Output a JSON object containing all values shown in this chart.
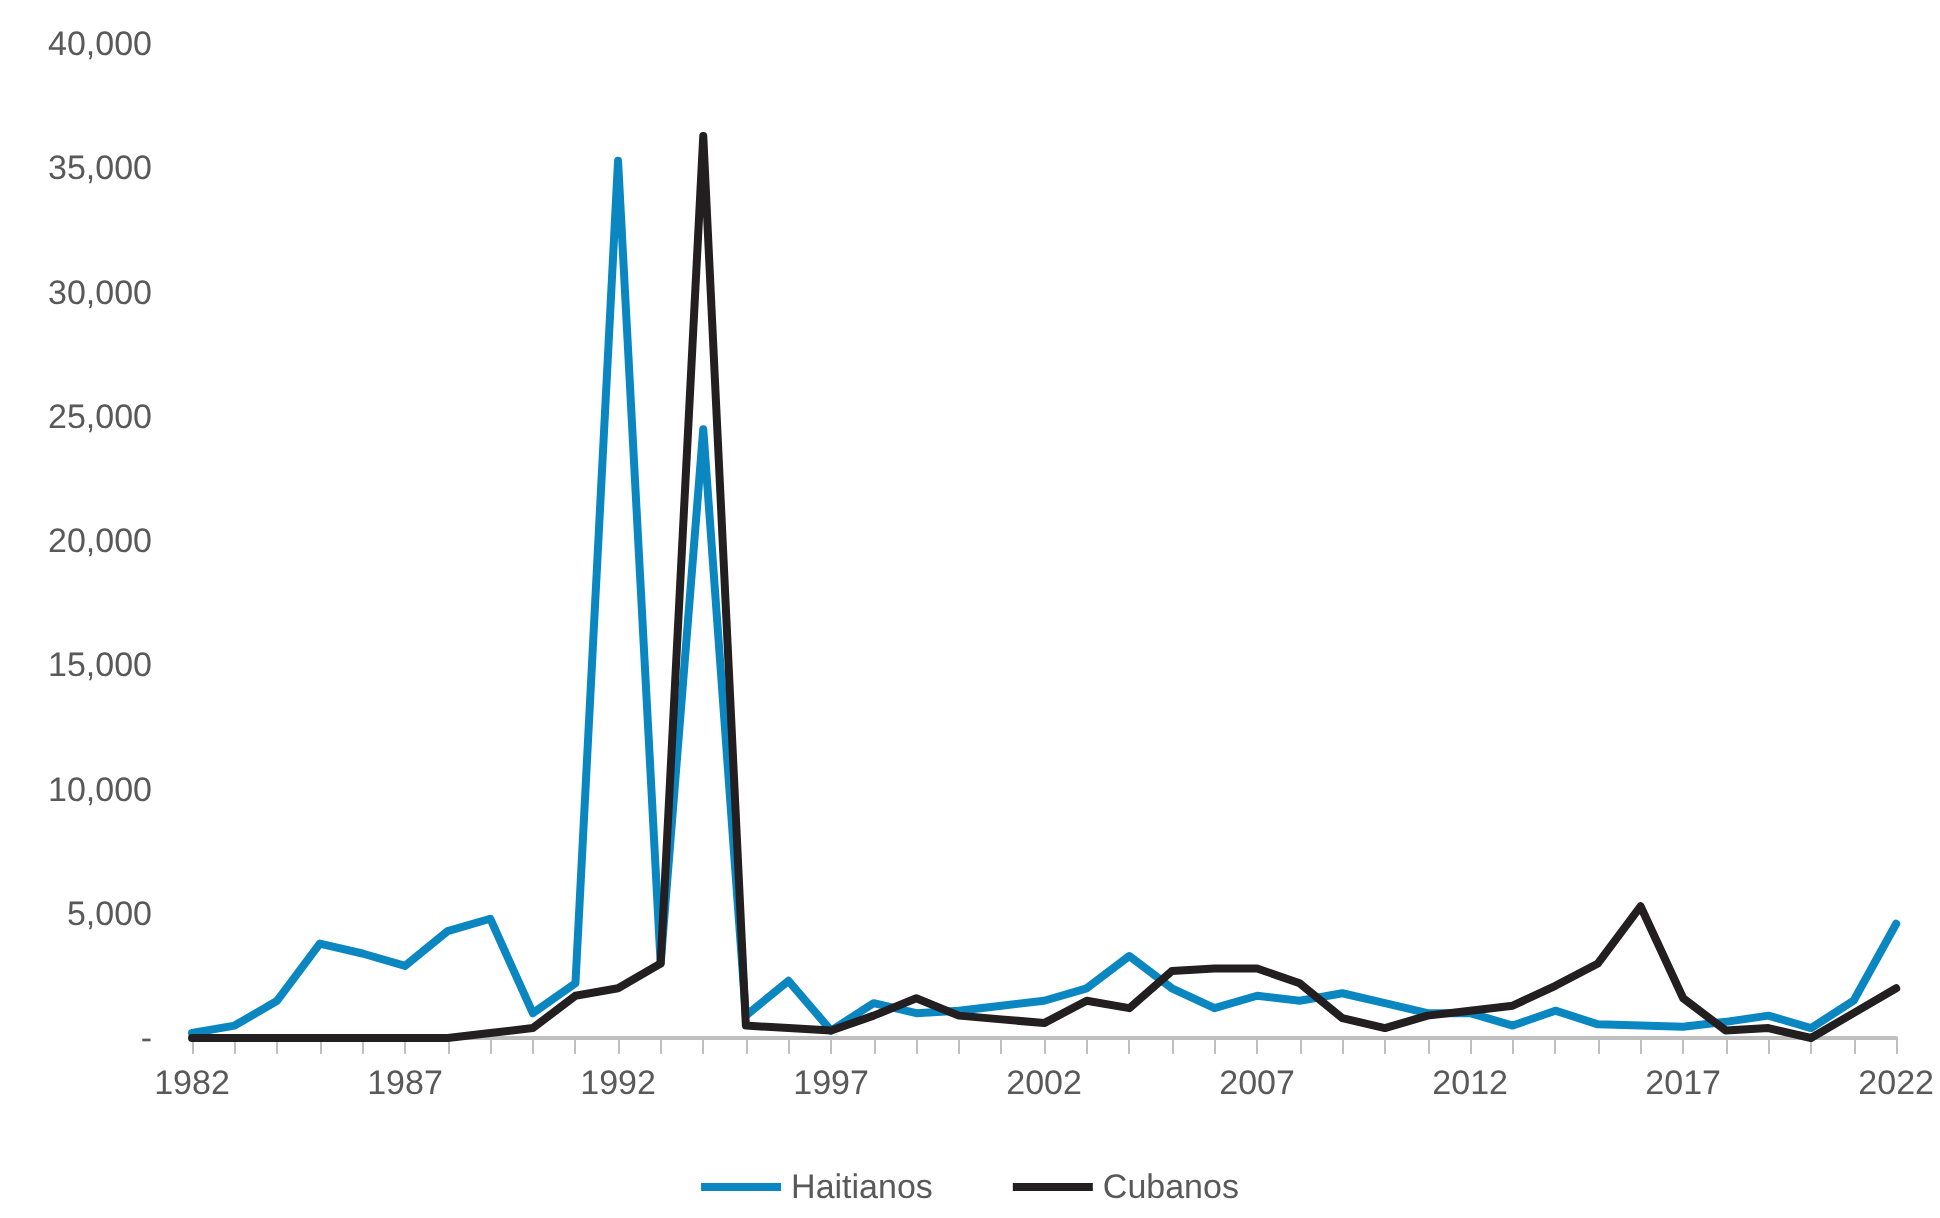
{
  "chart_data": {
    "type": "line",
    "categories": [
      "1982",
      null,
      null,
      null,
      null,
      "1987",
      null,
      null,
      null,
      null,
      "1992",
      null,
      null,
      null,
      null,
      "1997",
      null,
      null,
      null,
      null,
      "2002",
      null,
      null,
      null,
      null,
      "2007",
      null,
      null,
      null,
      null,
      "2012",
      null,
      null,
      null,
      null,
      "2017",
      null,
      null,
      null,
      null,
      "2022"
    ],
    "series": [
      {
        "name": "Haitianos",
        "color": "#0a87c1",
        "values": [
          200,
          500,
          1500,
          3800,
          3400,
          2900,
          4300,
          4800,
          1000,
          2200,
          35300,
          3000,
          24500,
          900,
          2300,
          300,
          1400,
          1000,
          1100,
          1300,
          1500,
          2000,
          3300,
          2000,
          1200,
          1700,
          1500,
          1800,
          1400,
          1000,
          1000,
          500,
          1100,
          550,
          500,
          450,
          650,
          900,
          400,
          1500,
          4600
        ]
      },
      {
        "name": "Cubanos",
        "color": "#231f20",
        "values": [
          0,
          0,
          0,
          0,
          0,
          0,
          0,
          200,
          400,
          1700,
          2000,
          3000,
          36300,
          500,
          400,
          300,
          900,
          1600,
          900,
          750,
          600,
          1500,
          1200,
          2700,
          2800,
          2800,
          2200,
          800,
          400,
          900,
          1100,
          1300,
          2100,
          3000,
          5300,
          1600,
          300,
          400,
          0,
          1000,
          2000
        ]
      }
    ],
    "ylim": [
      0,
      40000
    ],
    "yticks": [
      {
        "value": 0,
        "label": "-"
      },
      {
        "value": 5000,
        "label": "5,000"
      },
      {
        "value": 10000,
        "label": "10,000"
      },
      {
        "value": 15000,
        "label": "15,000"
      },
      {
        "value": 20000,
        "label": "20,000"
      },
      {
        "value": 25000,
        "label": "25,000"
      },
      {
        "value": 30000,
        "label": "30,000"
      },
      {
        "value": 35000,
        "label": "35,000"
      },
      {
        "value": 40000,
        "label": "40,000"
      }
    ],
    "grid": false,
    "legend": "bottom",
    "marker": "none",
    "line_style": "solid"
  }
}
